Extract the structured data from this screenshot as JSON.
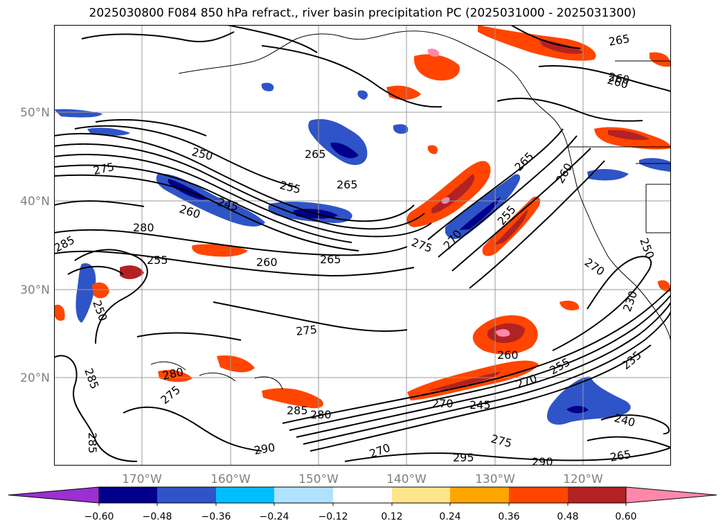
{
  "title": "2025030800 F084 850 hPa refract., river basin precipitation PC (2025031000 - 2025031300)",
  "map": {
    "lat_labels": [
      "50°N",
      "40°N",
      "30°N",
      "20°N"
    ],
    "lon_labels": [
      "170°W",
      "160°W",
      "150°W",
      "140°W",
      "130°W",
      "120°W"
    ],
    "contour_labels": [
      "250",
      "275",
      "255",
      "245",
      "260",
      "265",
      "280",
      "285",
      "255",
      "260",
      "265",
      "275",
      "265",
      "255",
      "270",
      "275",
      "250",
      "270",
      "265",
      "260",
      "255",
      "260",
      "270",
      "280",
      "275",
      "285",
      "280",
      "270",
      "245",
      "240",
      "235",
      "250",
      "270",
      "275",
      "285",
      "290",
      "295",
      "290",
      "265",
      "260",
      "265",
      "260",
      "285",
      "230"
    ]
  },
  "colorbar": {
    "ticks": [
      "−0.60",
      "−0.48",
      "−0.36",
      "−0.24",
      "−0.12",
      "0.12",
      "0.24",
      "0.36",
      "0.48",
      "0.60"
    ],
    "colors": [
      "#9b30d0",
      "#00008b",
      "#2f54c8",
      "#00bfff",
      "#b0e2ff",
      "#ffffff",
      "#ffe68c",
      "#ffa500",
      "#ff4500",
      "#b22222",
      "#ff88aa"
    ]
  }
}
